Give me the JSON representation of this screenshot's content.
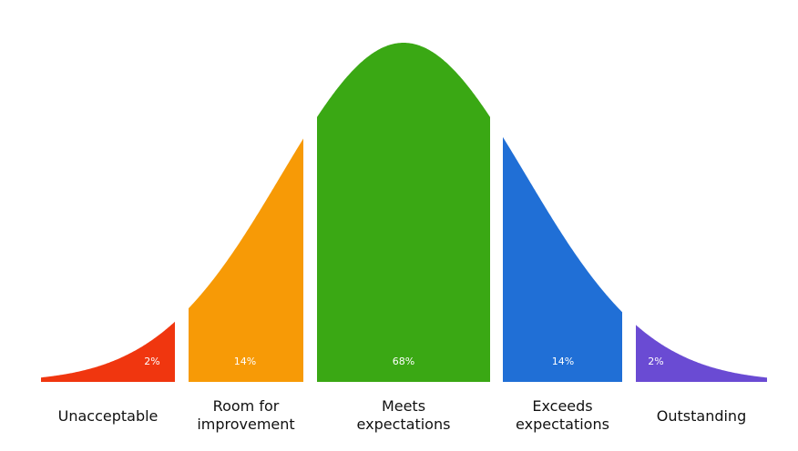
{
  "chart_data": {
    "type": "distribution",
    "categories": [
      [
        "Unacceptable"
      ],
      [
        "Room for",
        "improvement"
      ],
      [
        "Meets",
        "expectations"
      ],
      [
        "Exceeds",
        "expectations"
      ],
      [
        "Outstanding"
      ]
    ],
    "values": [
      2,
      14,
      68,
      14,
      2
    ],
    "value_labels": [
      "2%",
      "14%",
      "68%",
      "14%",
      "2%"
    ],
    "colors": [
      "#f0360f",
      "#f79a06",
      "#3aa814",
      "#206fd6",
      "#6a4bd3"
    ]
  }
}
